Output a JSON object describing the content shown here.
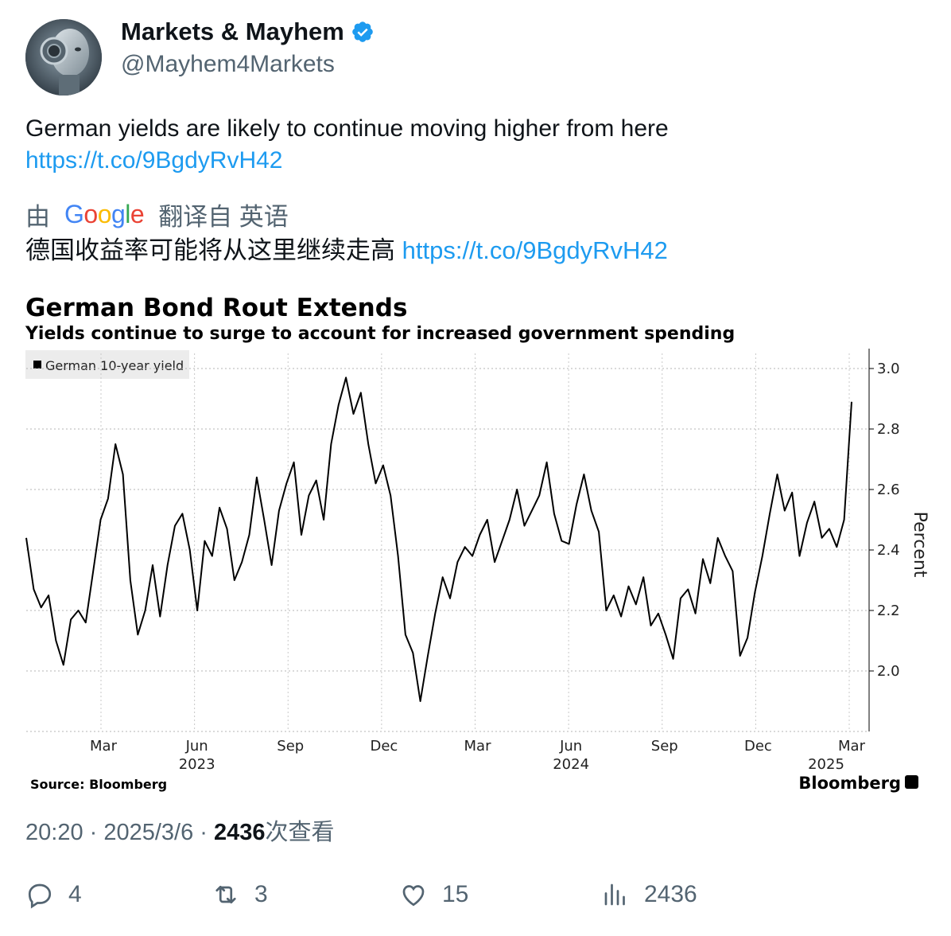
{
  "author": {
    "name": "Markets & Mayhem",
    "handle": "@Mayhem4Markets",
    "verified": true,
    "avatar_icon": "robot-avatar"
  },
  "tweet": {
    "text": "German yields are likely to continue moving higher from here",
    "link": "https://t.co/9BgdyRvH42"
  },
  "translation": {
    "prefix": "由",
    "provider": "Google",
    "suffix": "翻译自 英语",
    "text": "德国收益率可能将从这里继续走高",
    "link": "https://t.co/9BgdyRvH42"
  },
  "chart_data": {
    "type": "line",
    "title": "German Bond Rout Extends",
    "subtitle": "Yields continue to surge to account for increased government spending",
    "legend": "German 10-year yield",
    "ylabel": "Percent",
    "ylim": [
      1.8,
      3.05
    ],
    "yticks": [
      "3.0",
      "2.8",
      "2.6",
      "2.4",
      "2.2",
      "2.0"
    ],
    "ytick_values": [
      3.0,
      2.8,
      2.6,
      2.4,
      2.2,
      2.0
    ],
    "xtick_labels": [
      "Mar",
      "Jun",
      "Sep",
      "Dec",
      "Mar",
      "Jun",
      "Sep",
      "Dec",
      "Mar"
    ],
    "year_labels": [
      "2023",
      "2024",
      "2025"
    ],
    "source": "Source: Bloomberg",
    "brand": "Bloomberg",
    "grid": true,
    "legend_position": "top-left",
    "series": [
      {
        "name": "German 10-year yield",
        "values": [
          2.44,
          2.27,
          2.21,
          2.25,
          2.1,
          2.02,
          2.17,
          2.2,
          2.16,
          2.33,
          2.5,
          2.57,
          2.75,
          2.65,
          2.3,
          2.12,
          2.2,
          2.35,
          2.18,
          2.35,
          2.48,
          2.52,
          2.4,
          2.2,
          2.43,
          2.38,
          2.54,
          2.47,
          2.3,
          2.36,
          2.45,
          2.64,
          2.5,
          2.35,
          2.53,
          2.62,
          2.69,
          2.45,
          2.58,
          2.63,
          2.5,
          2.75,
          2.88,
          2.97,
          2.85,
          2.92,
          2.75,
          2.62,
          2.68,
          2.58,
          2.38,
          2.12,
          2.06,
          1.9,
          2.05,
          2.19,
          2.31,
          2.24,
          2.36,
          2.41,
          2.38,
          2.45,
          2.5,
          2.36,
          2.43,
          2.5,
          2.6,
          2.48,
          2.53,
          2.58,
          2.69,
          2.52,
          2.43,
          2.42,
          2.55,
          2.65,
          2.53,
          2.46,
          2.2,
          2.25,
          2.18,
          2.28,
          2.22,
          2.31,
          2.15,
          2.19,
          2.12,
          2.04,
          2.24,
          2.27,
          2.19,
          2.37,
          2.29,
          2.44,
          2.38,
          2.33,
          2.05,
          2.11,
          2.26,
          2.38,
          2.52,
          2.65,
          2.53,
          2.59,
          2.38,
          2.49,
          2.56,
          2.44,
          2.47,
          2.41,
          2.5,
          2.89
        ]
      }
    ]
  },
  "meta": {
    "time": "20:20 · 2025/3/6 · ",
    "views": "2436",
    "views_label": "次查看"
  },
  "actions": {
    "replies": "4",
    "retweets": "3",
    "likes": "15",
    "views": "2436"
  }
}
